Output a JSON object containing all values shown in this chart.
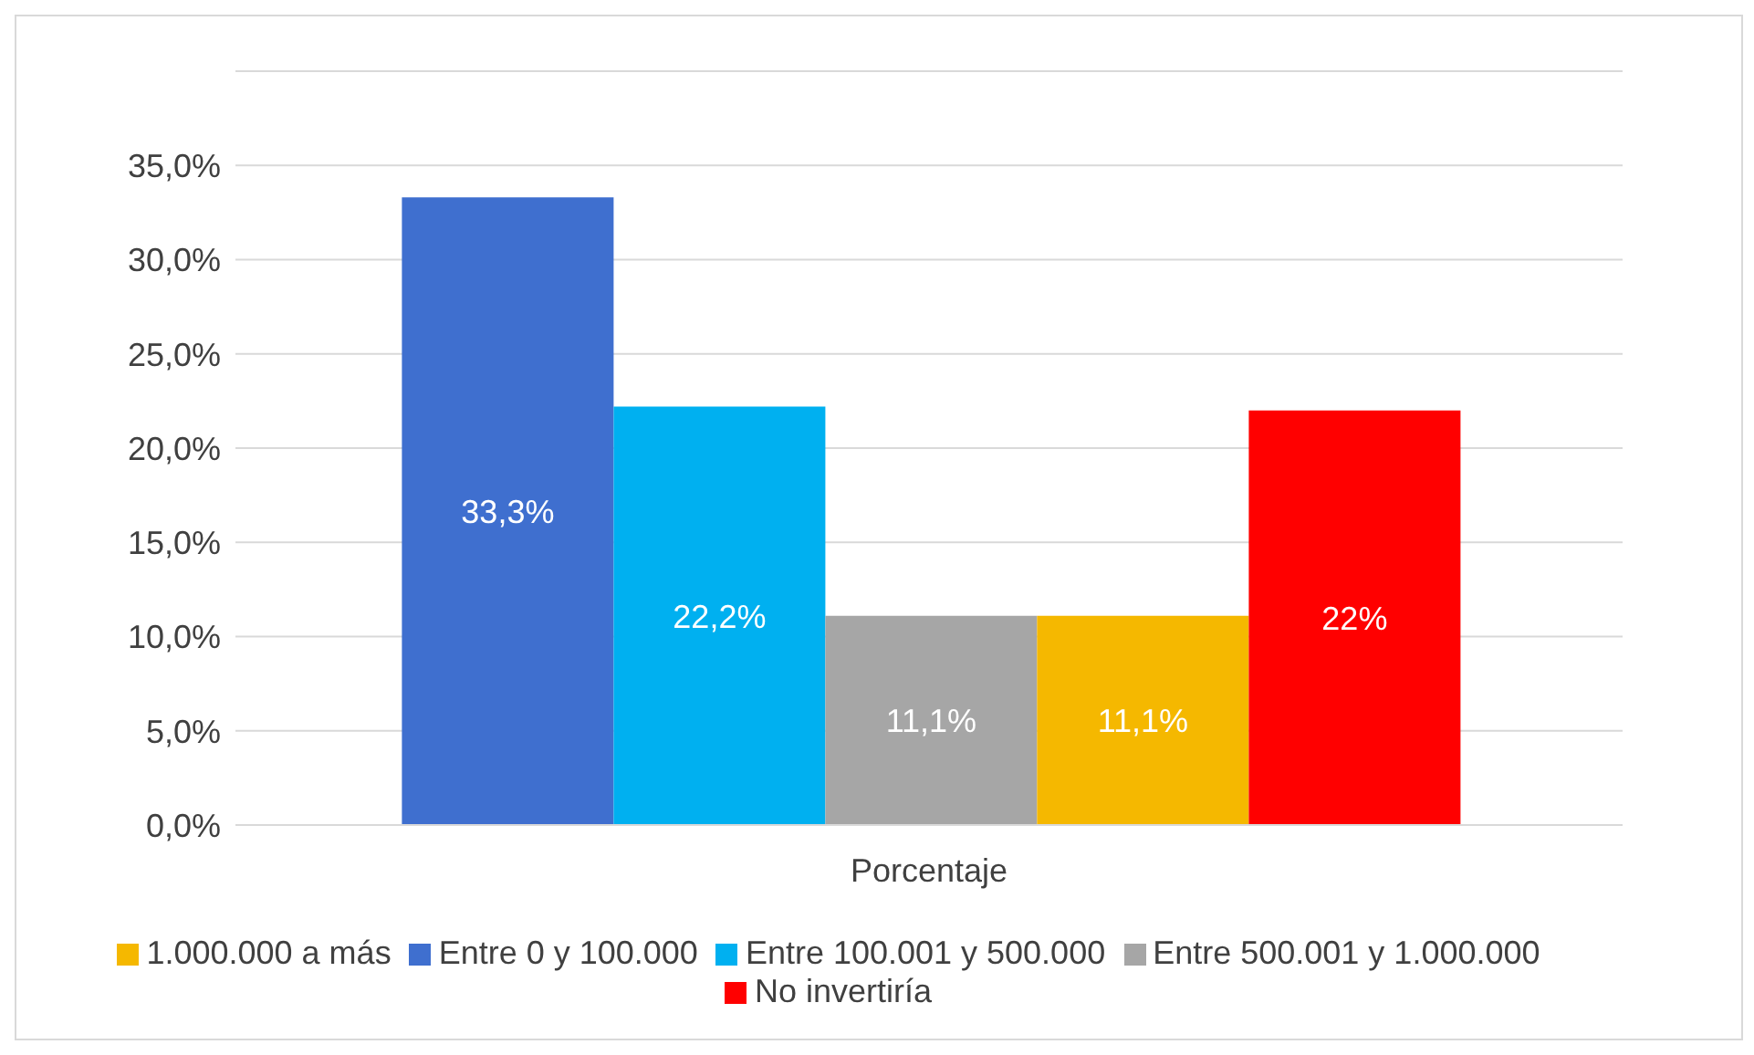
{
  "chart_data": {
    "type": "bar",
    "categories": [
      "Porcentaje"
    ],
    "series": [
      {
        "name": "Entre 0 y 100.000",
        "color": "#3f6fcf",
        "values": [
          33.3
        ],
        "value_labels": [
          "33,3%"
        ]
      },
      {
        "name": "Entre 100.001 y 500.000",
        "color": "#00b0f0",
        "values": [
          22.2
        ],
        "value_labels": [
          "22,2%"
        ]
      },
      {
        "name": "Entre 500.001 y 1.000.000",
        "color": "#a6a6a6",
        "values": [
          11.1
        ],
        "value_labels": [
          "11,1%"
        ]
      },
      {
        "name": "1.000.000 a más",
        "color": "#f5b800",
        "values": [
          11.1
        ],
        "value_labels": [
          "11,1%"
        ]
      },
      {
        "name": "No invertiría",
        "color": "#ff0000",
        "values": [
          22
        ],
        "value_labels": [
          "22%"
        ]
      }
    ],
    "ylim": [
      0,
      40
    ],
    "yticks": [
      {
        "value": 0,
        "label": "0,0%"
      },
      {
        "value": 5,
        "label": "5,0%"
      },
      {
        "value": 10,
        "label": "10,0%"
      },
      {
        "value": 15,
        "label": "15,0%"
      },
      {
        "value": 20,
        "label": "20,0%"
      },
      {
        "value": 25,
        "label": "25,0%"
      },
      {
        "value": 30,
        "label": "30,0%"
      },
      {
        "value": 35,
        "label": "35,0%"
      },
      {
        "value": 40,
        "label": null
      }
    ],
    "grid": "y",
    "legend": "bottom"
  }
}
